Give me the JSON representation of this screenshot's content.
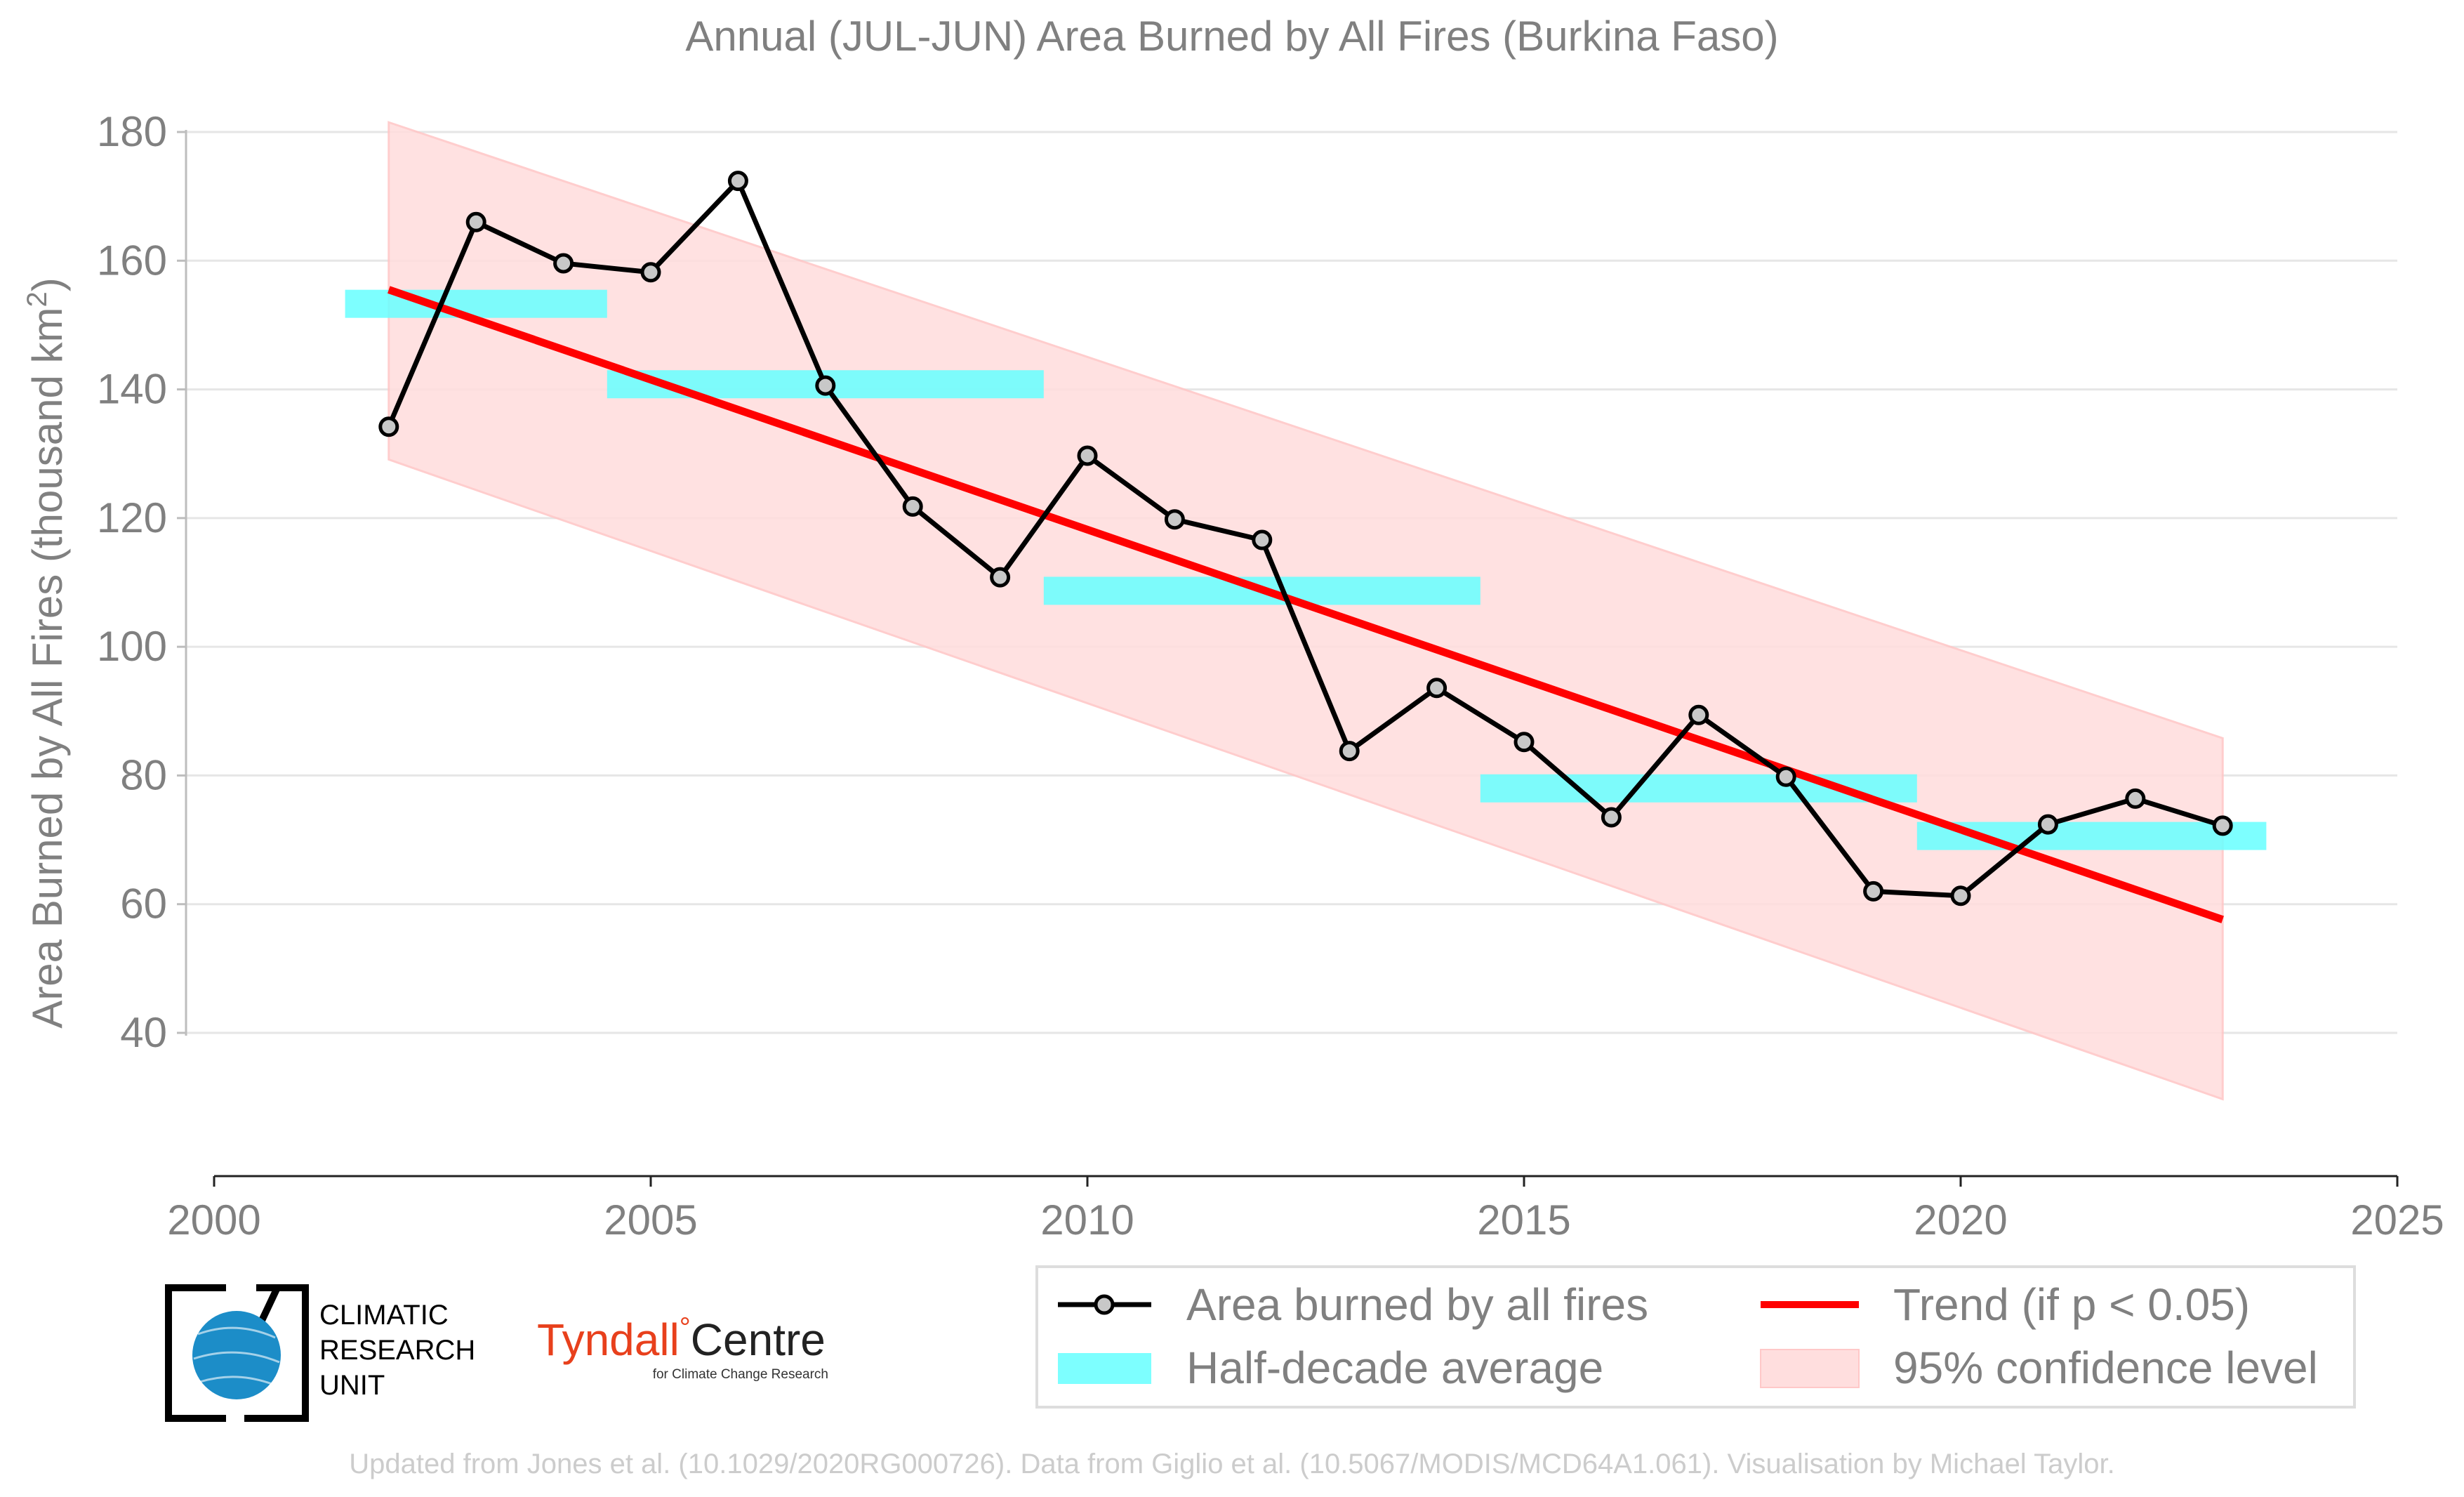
{
  "chart_data": {
    "type": "line",
    "title": "Annual (JUL-JUN) Area Burned by All Fires (Burkina Faso)",
    "ylabel_main": "Area Burned by All Fires (thousand km",
    "ylabel_sup": "2",
    "ylabel_end": ")",
    "xlim": [
      2000,
      2025
    ],
    "ylim": [
      20,
      185
    ],
    "xticks": [
      "2000",
      "2005",
      "2010",
      "2015",
      "2020",
      "2025"
    ],
    "yticks": [
      "40",
      "60",
      "80",
      "100",
      "120",
      "140",
      "160",
      "180"
    ],
    "grid": true,
    "legend_position": "bottom-right",
    "colors": {
      "series": "#000000",
      "marker_fill": "#c8c8c8",
      "half_decade": "#66ffff",
      "trend": "#ff0000",
      "confidence": "#ffc8c8",
      "text": "#808080",
      "grid": "#e6e6e6"
    },
    "series": [
      {
        "name": "Area burned by all fires",
        "x": [
          2002,
          2003,
          2004,
          2005,
          2006,
          2007,
          2008,
          2009,
          2010,
          2011,
          2012,
          2013,
          2014,
          2015,
          2016,
          2017,
          2018,
          2019,
          2020,
          2021,
          2022,
          2023
        ],
        "y": [
          134.2,
          166.0,
          159.6,
          158.2,
          172.4,
          140.6,
          121.8,
          110.8,
          129.7,
          119.8,
          116.6,
          83.8,
          93.6,
          85.2,
          73.5,
          89.4,
          79.8,
          62.0,
          61.3,
          72.4,
          76.4,
          72.2
        ]
      }
    ],
    "half_decade": {
      "name": "Half-decade average",
      "segments": [
        {
          "x0": 2001.5,
          "x1": 2004.5,
          "y": 153.3
        },
        {
          "x0": 2004.5,
          "x1": 2009.5,
          "y": 140.8
        },
        {
          "x0": 2009.5,
          "x1": 2014.5,
          "y": 108.7
        },
        {
          "x0": 2014.5,
          "x1": 2019.5,
          "y": 78.0
        },
        {
          "x0": 2019.5,
          "x1": 2023.5,
          "y": 70.6
        }
      ]
    },
    "trend": {
      "name": "Trend (if p < 0.05)",
      "x": [
        2002,
        2023
      ],
      "y": [
        155.5,
        57.6
      ]
    },
    "confidence": {
      "name": "95% confidence level",
      "x": [
        2002,
        2023
      ],
      "upper": [
        181.5,
        85.8
      ],
      "lower": [
        129.1,
        29.7
      ]
    },
    "legend": [
      "Area burned by all fires",
      "Trend (if p < 0.05)",
      "Half-decade average",
      "95% confidence level"
    ]
  },
  "logos": {
    "cru_lines": [
      "CLIMATIC",
      "RESEARCH",
      "UNIT"
    ],
    "tyndall_name": "Tyndall",
    "tyndall_degree": "°",
    "tyndall_centre": "Centre",
    "tyndall_sub": "for Climate Change Research"
  },
  "credit": "Updated from Jones et al. (10.1029/2020RG000726). Data from Giglio et al. (10.5067/MODIS/MCD64A1.061). Visualisation by Michael Taylor."
}
